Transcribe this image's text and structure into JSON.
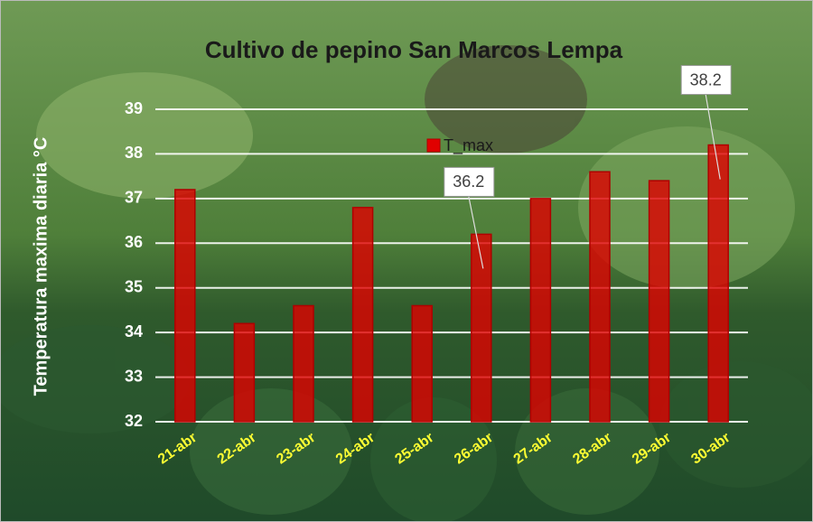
{
  "chart_data": {
    "type": "bar",
    "title": "Cultivo de pepino San Marcos Lempa",
    "y_label": "Temperatura maxima diaria °C",
    "categories": [
      "21-abr",
      "22-abr",
      "23-abr",
      "24-abr",
      "25-abr",
      "26-abr",
      "27-abr",
      "28-abr",
      "29-abr",
      "30-abr"
    ],
    "series": [
      {
        "name": "T_max",
        "color": "#e00000",
        "values": [
          37.2,
          34.2,
          34.6,
          36.8,
          34.6,
          36.2,
          37.0,
          37.6,
          37.4,
          38.2
        ],
        "value_labels": [
          null,
          null,
          null,
          null,
          null,
          "36.2",
          null,
          null,
          null,
          "38.2"
        ]
      }
    ],
    "ylim": [
      32,
      39
    ],
    "yticks": [
      32,
      33,
      34,
      35,
      36,
      37,
      38,
      39
    ],
    "grid": true
  }
}
